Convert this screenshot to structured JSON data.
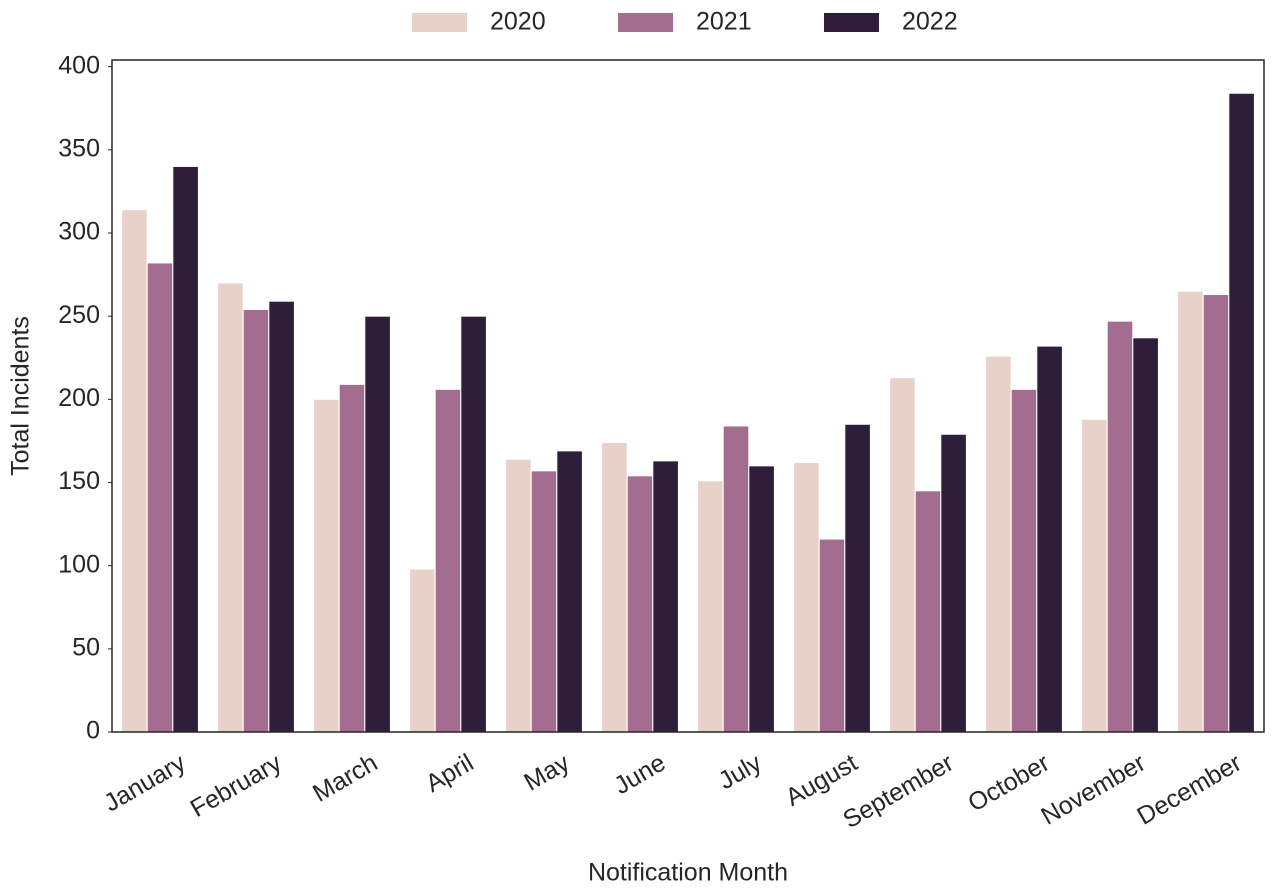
{
  "chart_data": {
    "type": "bar",
    "x_label": "Notification Month",
    "y_label": "Total Incidents",
    "categories": [
      "January",
      "February",
      "March",
      "April",
      "May",
      "June",
      "July",
      "August",
      "September",
      "October",
      "November",
      "December"
    ],
    "series": [
      {
        "name": "2020",
        "color": "#e8d1c9",
        "values": [
          314,
          270,
          200,
          98,
          164,
          174,
          151,
          162,
          213,
          226,
          188,
          265
        ]
      },
      {
        "name": "2021",
        "color": "#a26d8f",
        "values": [
          282,
          254,
          209,
          206,
          157,
          154,
          184,
          116,
          145,
          206,
          247,
          263
        ]
      },
      {
        "name": "2022",
        "color": "#2e1e3b",
        "values": [
          340,
          259,
          250,
          250,
          169,
          163,
          160,
          185,
          179,
          232,
          237,
          384
        ]
      }
    ],
    "ylim": [
      0,
      404
    ],
    "yticks": [
      0,
      50,
      100,
      150,
      200,
      250,
      300,
      350,
      400
    ],
    "legend": "top"
  }
}
